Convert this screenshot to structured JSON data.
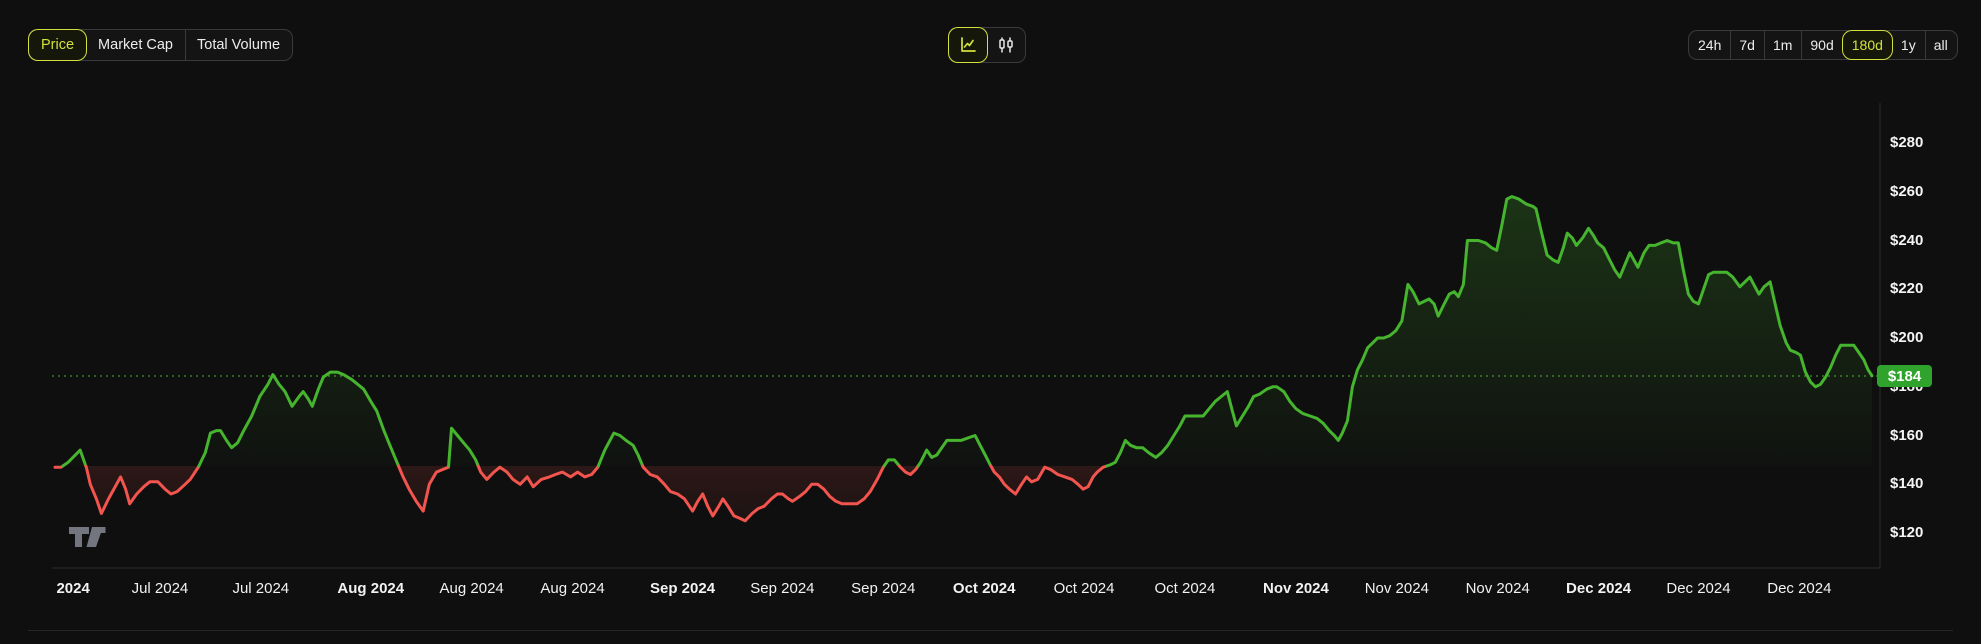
{
  "theme": {
    "accent": "#d3e13c",
    "background": "#0f0f0f",
    "text": "#ededed",
    "axis_line": "#2b2b2b"
  },
  "header": {
    "metric_tabs": [
      {
        "label": "Price",
        "selected": true
      },
      {
        "label": "Market Cap",
        "selected": false
      },
      {
        "label": "Total Volume",
        "selected": false
      }
    ],
    "chart_types": [
      {
        "name": "line-chart",
        "selected": true
      },
      {
        "name": "candlestick",
        "selected": false
      }
    ],
    "ranges": [
      {
        "label": "24h",
        "selected": false
      },
      {
        "label": "7d",
        "selected": false
      },
      {
        "label": "1m",
        "selected": false
      },
      {
        "label": "90d",
        "selected": false,
        "gap_before": true
      },
      {
        "label": "180d",
        "selected": true
      },
      {
        "label": "1y",
        "selected": false
      },
      {
        "label": "all",
        "selected": false
      }
    ]
  },
  "chart_data": {
    "type": "line",
    "title": "",
    "legend": false,
    "grid": false,
    "colors": {
      "up_line": "#46b42e",
      "down_line": "#f2544e",
      "dotted_current": "#54c636",
      "badge": "#2fa32c"
    },
    "baseline_price": 147.5,
    "current_price": {
      "label": "$184",
      "value": 184.4
    },
    "y_axis": {
      "prefix": "$",
      "tick_values": [
        280,
        260,
        240,
        220,
        200,
        180,
        160,
        140,
        120
      ],
      "min": 110,
      "max": 290
    },
    "x_axis": {
      "unit": "days from start of 180d window (Jul 2024 - Dec 2024)",
      "max_day": 180.1,
      "ticks": [
        {
          "label": "2024",
          "day": 1.8,
          "bold": true
        },
        {
          "label": "Jul 2024",
          "day": 10.4,
          "bold": false
        },
        {
          "label": "Jul 2024",
          "day": 20.4,
          "bold": false
        },
        {
          "label": "Aug 2024",
          "day": 31.3,
          "bold": true
        },
        {
          "label": "Aug 2024",
          "day": 41.3,
          "bold": false
        },
        {
          "label": "Aug 2024",
          "day": 51.3,
          "bold": false
        },
        {
          "label": "Sep 2024",
          "day": 62.2,
          "bold": true
        },
        {
          "label": "Sep 2024",
          "day": 72.1,
          "bold": false
        },
        {
          "label": "Sep 2024",
          "day": 82.1,
          "bold": false
        },
        {
          "label": "Oct 2024",
          "day": 92.1,
          "bold": true
        },
        {
          "label": "Oct 2024",
          "day": 102,
          "bold": false
        },
        {
          "label": "Oct 2024",
          "day": 112,
          "bold": false
        },
        {
          "label": "Nov 2024",
          "day": 123,
          "bold": true
        },
        {
          "label": "Nov 2024",
          "day": 133,
          "bold": false
        },
        {
          "label": "Nov 2024",
          "day": 143,
          "bold": false
        },
        {
          "label": "Dec 2024",
          "day": 153,
          "bold": true
        },
        {
          "label": "Dec 2024",
          "day": 162.9,
          "bold": false
        },
        {
          "label": "Dec 2024",
          "day": 172.9,
          "bold": false
        }
      ]
    },
    "points": [
      [
        0,
        147
      ],
      [
        0.6,
        147
      ],
      [
        1.3,
        149
      ],
      [
        2.5,
        154
      ],
      [
        3.1,
        147
      ],
      [
        3.5,
        140
      ],
      [
        4.1,
        134
      ],
      [
        4.6,
        128
      ],
      [
        5.3,
        134
      ],
      [
        5.7,
        137
      ],
      [
        6.5,
        143
      ],
      [
        7,
        138
      ],
      [
        7.4,
        132
      ],
      [
        8.1,
        136
      ],
      [
        8.8,
        139
      ],
      [
        9.4,
        141
      ],
      [
        10.2,
        141
      ],
      [
        10.9,
        138
      ],
      [
        11.5,
        136
      ],
      [
        12.1,
        137
      ],
      [
        12.9,
        140
      ],
      [
        13.4,
        142
      ],
      [
        14.2,
        147
      ],
      [
        14.9,
        153
      ],
      [
        15.4,
        161
      ],
      [
        16,
        162
      ],
      [
        16.4,
        162
      ],
      [
        17,
        158
      ],
      [
        17.5,
        155
      ],
      [
        18.1,
        157
      ],
      [
        18.7,
        162
      ],
      [
        19.5,
        168
      ],
      [
        20.3,
        176
      ],
      [
        21.1,
        181
      ],
      [
        21.6,
        185
      ],
      [
        22.2,
        181
      ],
      [
        22.8,
        178
      ],
      [
        23.5,
        172
      ],
      [
        24.2,
        176
      ],
      [
        24.6,
        178
      ],
      [
        25.1,
        175
      ],
      [
        25.5,
        172
      ],
      [
        26.1,
        179
      ],
      [
        26.6,
        184
      ],
      [
        27.3,
        186
      ],
      [
        28,
        186
      ],
      [
        28.6,
        185
      ],
      [
        29.4,
        183
      ],
      [
        30,
        181
      ],
      [
        30.6,
        179
      ],
      [
        31.3,
        174
      ],
      [
        31.9,
        170
      ],
      [
        32.6,
        162
      ],
      [
        33.2,
        156
      ],
      [
        33.8,
        150
      ],
      [
        34.5,
        143
      ],
      [
        35.1,
        138
      ],
      [
        35.8,
        133
      ],
      [
        36.5,
        129
      ],
      [
        37.1,
        140
      ],
      [
        37.8,
        145
      ],
      [
        38.4,
        146
      ],
      [
        39,
        147
      ],
      [
        39.3,
        163
      ],
      [
        39.9,
        160
      ],
      [
        40.5,
        157
      ],
      [
        41.1,
        154
      ],
      [
        41.7,
        150
      ],
      [
        42.2,
        145
      ],
      [
        42.8,
        142
      ],
      [
        43.5,
        145
      ],
      [
        44.1,
        147
      ],
      [
        44.8,
        145
      ],
      [
        45.4,
        142
      ],
      [
        46.1,
        140
      ],
      [
        46.8,
        143
      ],
      [
        47.4,
        139
      ],
      [
        48.2,
        142
      ],
      [
        49,
        143
      ],
      [
        49.6,
        144
      ],
      [
        50.3,
        145
      ],
      [
        51.1,
        143
      ],
      [
        51.8,
        145
      ],
      [
        52.5,
        143
      ],
      [
        53.2,
        144
      ],
      [
        53.8,
        147
      ],
      [
        54.5,
        154
      ],
      [
        55.4,
        161
      ],
      [
        56,
        160
      ],
      [
        56.6,
        158
      ],
      [
        57.3,
        156
      ],
      [
        57.8,
        152
      ],
      [
        58.3,
        147
      ],
      [
        59,
        144
      ],
      [
        59.7,
        143
      ],
      [
        60.4,
        140
      ],
      [
        61,
        137
      ],
      [
        61.7,
        136
      ],
      [
        62.4,
        134
      ],
      [
        63.2,
        129
      ],
      [
        63.7,
        133
      ],
      [
        64.2,
        136
      ],
      [
        64.7,
        131
      ],
      [
        65.2,
        127
      ],
      [
        65.8,
        131
      ],
      [
        66.2,
        134
      ],
      [
        66.7,
        131
      ],
      [
        67.3,
        127
      ],
      [
        67.9,
        126
      ],
      [
        68.4,
        125
      ],
      [
        69.1,
        128
      ],
      [
        69.7,
        130
      ],
      [
        70.3,
        131
      ],
      [
        71,
        134
      ],
      [
        71.6,
        136
      ],
      [
        72.1,
        136
      ],
      [
        72.7,
        134
      ],
      [
        73.1,
        133
      ],
      [
        73.8,
        135
      ],
      [
        74.4,
        137
      ],
      [
        75,
        140
      ],
      [
        75.6,
        140
      ],
      [
        76.2,
        138
      ],
      [
        76.8,
        135
      ],
      [
        77.4,
        133
      ],
      [
        78,
        132
      ],
      [
        78.8,
        132
      ],
      [
        79.5,
        132
      ],
      [
        80.2,
        134
      ],
      [
        80.8,
        137
      ],
      [
        81.5,
        142
      ],
      [
        82.1,
        147
      ],
      [
        82.6,
        150
      ],
      [
        83.2,
        150
      ],
      [
        83.8,
        147
      ],
      [
        84.3,
        145
      ],
      [
        84.8,
        144
      ],
      [
        85.3,
        146
      ],
      [
        85.8,
        149
      ],
      [
        86.4,
        154
      ],
      [
        86.9,
        151
      ],
      [
        87.4,
        152
      ],
      [
        87.9,
        155
      ],
      [
        88.4,
        158
      ],
      [
        89.1,
        158
      ],
      [
        89.8,
        158
      ],
      [
        90.5,
        159
      ],
      [
        91.2,
        160
      ],
      [
        91.7,
        156
      ],
      [
        92.2,
        152
      ],
      [
        92.7,
        148
      ],
      [
        93.1,
        145
      ],
      [
        93.6,
        143
      ],
      [
        94.1,
        140
      ],
      [
        94.6,
        138
      ],
      [
        95.2,
        136
      ],
      [
        95.8,
        140
      ],
      [
        96.3,
        143
      ],
      [
        96.8,
        141
      ],
      [
        97.4,
        142
      ],
      [
        98.1,
        147
      ],
      [
        98.7,
        146
      ],
      [
        99.4,
        144
      ],
      [
        100.1,
        143
      ],
      [
        100.8,
        142
      ],
      [
        101.4,
        140
      ],
      [
        101.9,
        138
      ],
      [
        102.4,
        139
      ],
      [
        102.9,
        143
      ],
      [
        103.3,
        145
      ],
      [
        103.9,
        147
      ],
      [
        104.6,
        148
      ],
      [
        105.1,
        149
      ],
      [
        105.6,
        153
      ],
      [
        106.1,
        158
      ],
      [
        106.6,
        156
      ],
      [
        107.2,
        155
      ],
      [
        107.8,
        155
      ],
      [
        108.4,
        153
      ],
      [
        109.1,
        151
      ],
      [
        109.7,
        153
      ],
      [
        110.3,
        156
      ],
      [
        110.9,
        160
      ],
      [
        111.5,
        164
      ],
      [
        112,
        168
      ],
      [
        112.7,
        168
      ],
      [
        113.3,
        168
      ],
      [
        113.8,
        168
      ],
      [
        114.4,
        171
      ],
      [
        115,
        174
      ],
      [
        115.6,
        176
      ],
      [
        116.2,
        178
      ],
      [
        116.7,
        170
      ],
      [
        117.1,
        164
      ],
      [
        117.7,
        168
      ],
      [
        118.3,
        172
      ],
      [
        118.8,
        176
      ],
      [
        119.4,
        177
      ],
      [
        120.1,
        179
      ],
      [
        120.7,
        180
      ],
      [
        121.1,
        180
      ],
      [
        121.8,
        178
      ],
      [
        122.4,
        174
      ],
      [
        123,
        171
      ],
      [
        123.7,
        169
      ],
      [
        124.4,
        168
      ],
      [
        125.1,
        167
      ],
      [
        125.7,
        165
      ],
      [
        126.3,
        162
      ],
      [
        126.8,
        160
      ],
      [
        127.2,
        158
      ],
      [
        127.6,
        161
      ],
      [
        128.1,
        166
      ],
      [
        128.6,
        180
      ],
      [
        129.1,
        187
      ],
      [
        129.6,
        191
      ],
      [
        130.1,
        196
      ],
      [
        130.6,
        198
      ],
      [
        131.1,
        200
      ],
      [
        131.7,
        200
      ],
      [
        132.3,
        201
      ],
      [
        132.9,
        203
      ],
      [
        133.5,
        207
      ],
      [
        134.1,
        222
      ],
      [
        134.6,
        219
      ],
      [
        135.2,
        214
      ],
      [
        135.7,
        215
      ],
      [
        136.2,
        216
      ],
      [
        136.7,
        214
      ],
      [
        137.1,
        209
      ],
      [
        137.7,
        214
      ],
      [
        138.2,
        218
      ],
      [
        138.7,
        219
      ],
      [
        139.1,
        217
      ],
      [
        139.6,
        222
      ],
      [
        140,
        240
      ],
      [
        140.5,
        240
      ],
      [
        141.1,
        240
      ],
      [
        141.8,
        239
      ],
      [
        142.4,
        237
      ],
      [
        142.9,
        236
      ],
      [
        143.4,
        246
      ],
      [
        143.9,
        257
      ],
      [
        144.4,
        258
      ],
      [
        145.1,
        257
      ],
      [
        145.8,
        255
      ],
      [
        146.5,
        254
      ],
      [
        146.8,
        253
      ],
      [
        147.3,
        244
      ],
      [
        147.9,
        234
      ],
      [
        148.5,
        232
      ],
      [
        149,
        231
      ],
      [
        149.5,
        237
      ],
      [
        149.9,
        243
      ],
      [
        150.4,
        241
      ],
      [
        150.8,
        238
      ],
      [
        151.4,
        241
      ],
      [
        152,
        245
      ],
      [
        152.5,
        242
      ],
      [
        152.9,
        239
      ],
      [
        153.5,
        237
      ],
      [
        154.1,
        232
      ],
      [
        154.6,
        228
      ],
      [
        155.1,
        225
      ],
      [
        155.6,
        230
      ],
      [
        156.1,
        235
      ],
      [
        156.5,
        232
      ],
      [
        156.9,
        229
      ],
      [
        157.5,
        235
      ],
      [
        158,
        238
      ],
      [
        158.6,
        238
      ],
      [
        159.2,
        239
      ],
      [
        159.8,
        240
      ],
      [
        160.4,
        239
      ],
      [
        160.9,
        239
      ],
      [
        161.4,
        228
      ],
      [
        161.9,
        218
      ],
      [
        162.4,
        215
      ],
      [
        162.9,
        214
      ],
      [
        163.4,
        220
      ],
      [
        163.9,
        226
      ],
      [
        164.4,
        227
      ],
      [
        165,
        227
      ],
      [
        165.7,
        227
      ],
      [
        166.3,
        225
      ],
      [
        167,
        221
      ],
      [
        167.5,
        223
      ],
      [
        168,
        225
      ],
      [
        168.5,
        221
      ],
      [
        168.9,
        218
      ],
      [
        169.4,
        221
      ],
      [
        170,
        223
      ],
      [
        170.5,
        214
      ],
      [
        171,
        205
      ],
      [
        171.6,
        198
      ],
      [
        172,
        195
      ],
      [
        172.6,
        194
      ],
      [
        173,
        193
      ],
      [
        173.5,
        186
      ],
      [
        174,
        182
      ],
      [
        174.5,
        180
      ],
      [
        175,
        181
      ],
      [
        175.5,
        184
      ],
      [
        176,
        188
      ],
      [
        176.5,
        193
      ],
      [
        177,
        197
      ],
      [
        177.7,
        197
      ],
      [
        178.3,
        197
      ],
      [
        178.8,
        194
      ],
      [
        179.3,
        191
      ],
      [
        179.7,
        187
      ],
      [
        180.1,
        184.5
      ]
    ]
  },
  "footer": {
    "logo": "tradingview"
  }
}
